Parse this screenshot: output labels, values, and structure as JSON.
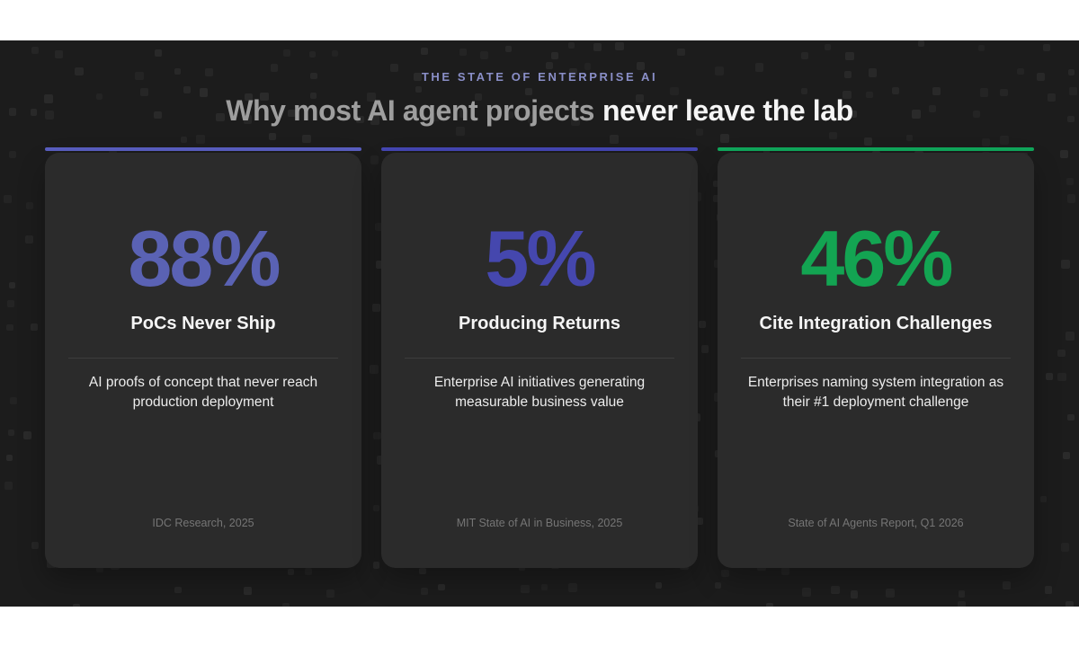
{
  "page": {
    "eyebrow": "THE STATE OF ENTERPRISE AI",
    "title_muted": "Why most AI agent projects",
    "title_emphasis": "never leave the lab"
  },
  "colors": {
    "letterbox": "#ffffff",
    "stage_background": "#1c1c1c",
    "pattern_square": "#2a2a2a",
    "card_background": "#2b2b2b",
    "eyebrow_text": "#8a8fc8",
    "title_muted_text": "#9e9e9e",
    "title_emphasis_text": "#f5f5f5",
    "divider": "#3d3d3d",
    "source_text": "#757575"
  },
  "cards": [
    {
      "accent_color": "#5a5fc2",
      "stat_color": "#5a62b4",
      "stat": "88%",
      "heading": "PoCs Never Ship",
      "description": "AI proofs of concept that never reach production deployment",
      "source": "IDC Research, 2025"
    },
    {
      "accent_color": "#4547b4",
      "stat_color": "#4547ae",
      "stat": "5%",
      "heading": "Producing Returns",
      "description": "Enterprise AI initiatives generating measurable business value",
      "source": "MIT State of AI in Business, 2025"
    },
    {
      "accent_color": "#10a85c",
      "stat_color": "#13a452",
      "stat": "46%",
      "heading": "Cite Integration Challenges",
      "description": "Enterprises naming system integration as their #1 deployment challenge",
      "source": "State of AI Agents Report, Q1 2026"
    }
  ]
}
